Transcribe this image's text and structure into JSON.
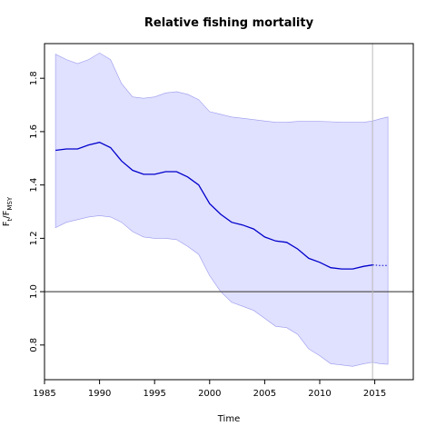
{
  "chart_data": {
    "type": "line",
    "title": "Relative fishing mortality",
    "xlabel": "Time",
    "ylabel": {
      "main": "F",
      "sub1": "t",
      "slash": "/F",
      "sub2": "MSY"
    },
    "xlim": [
      1985,
      2018.5
    ],
    "ylim": [
      0.67,
      1.93
    ],
    "x_ticks": [
      "1985",
      "1990",
      "1995",
      "2000",
      "2005",
      "2010",
      "2015"
    ],
    "y_ticks": [
      "0.8",
      "1.0",
      "1.2",
      "1.4",
      "1.6",
      "1.8"
    ],
    "reference_line_y": 1.0,
    "vertical_line_x": 2014.8,
    "colors": {
      "line": "#0000cc",
      "band_fill": "#e0e0ff",
      "band_edge": "#9999ee",
      "reference": "#555555",
      "vline": "#bbbbbb"
    },
    "series": [
      {
        "x": [
          1986,
          1987,
          1988,
          1989,
          1990,
          1991,
          1992,
          1993,
          1994,
          1995,
          1996,
          1997,
          1998,
          1999,
          2000,
          2001,
          2002,
          2003,
          2004,
          2005,
          2006,
          2007,
          2008,
          2009,
          2010,
          2011,
          2012,
          2013,
          2014,
          2014.8
        ],
        "y": [
          1.53,
          1.535,
          1.535,
          1.55,
          1.56,
          1.54,
          1.49,
          1.455,
          1.44,
          1.44,
          1.45,
          1.45,
          1.43,
          1.4,
          1.33,
          1.29,
          1.26,
          1.25,
          1.235,
          1.205,
          1.19,
          1.185,
          1.16,
          1.125,
          1.11,
          1.09,
          1.085,
          1.085,
          1.095,
          1.1
        ],
        "upper": [
          1.89,
          1.87,
          1.855,
          1.87,
          1.895,
          1.87,
          1.78,
          1.73,
          1.725,
          1.73,
          1.745,
          1.75,
          1.74,
          1.72,
          1.675,
          1.665,
          1.655,
          1.65,
          1.645,
          1.64,
          1.635,
          1.635,
          1.638,
          1.638,
          1.638,
          1.637,
          1.635,
          1.635,
          1.635,
          1.64
        ],
        "lower": [
          1.24,
          1.26,
          1.27,
          1.28,
          1.285,
          1.28,
          1.26,
          1.225,
          1.205,
          1.2,
          1.2,
          1.195,
          1.17,
          1.14,
          1.06,
          1.0,
          0.96,
          0.945,
          0.93,
          0.9,
          0.87,
          0.865,
          0.84,
          0.785,
          0.76,
          0.73,
          0.725,
          0.72,
          0.73,
          0.735
        ]
      },
      {
        "x": [
          2014.8,
          2015.5,
          2016.2
        ],
        "y": [
          1.1,
          1.098,
          1.098
        ],
        "upper": [
          1.64,
          1.648,
          1.655
        ],
        "lower": [
          0.735,
          0.73,
          0.728
        ]
      }
    ]
  }
}
